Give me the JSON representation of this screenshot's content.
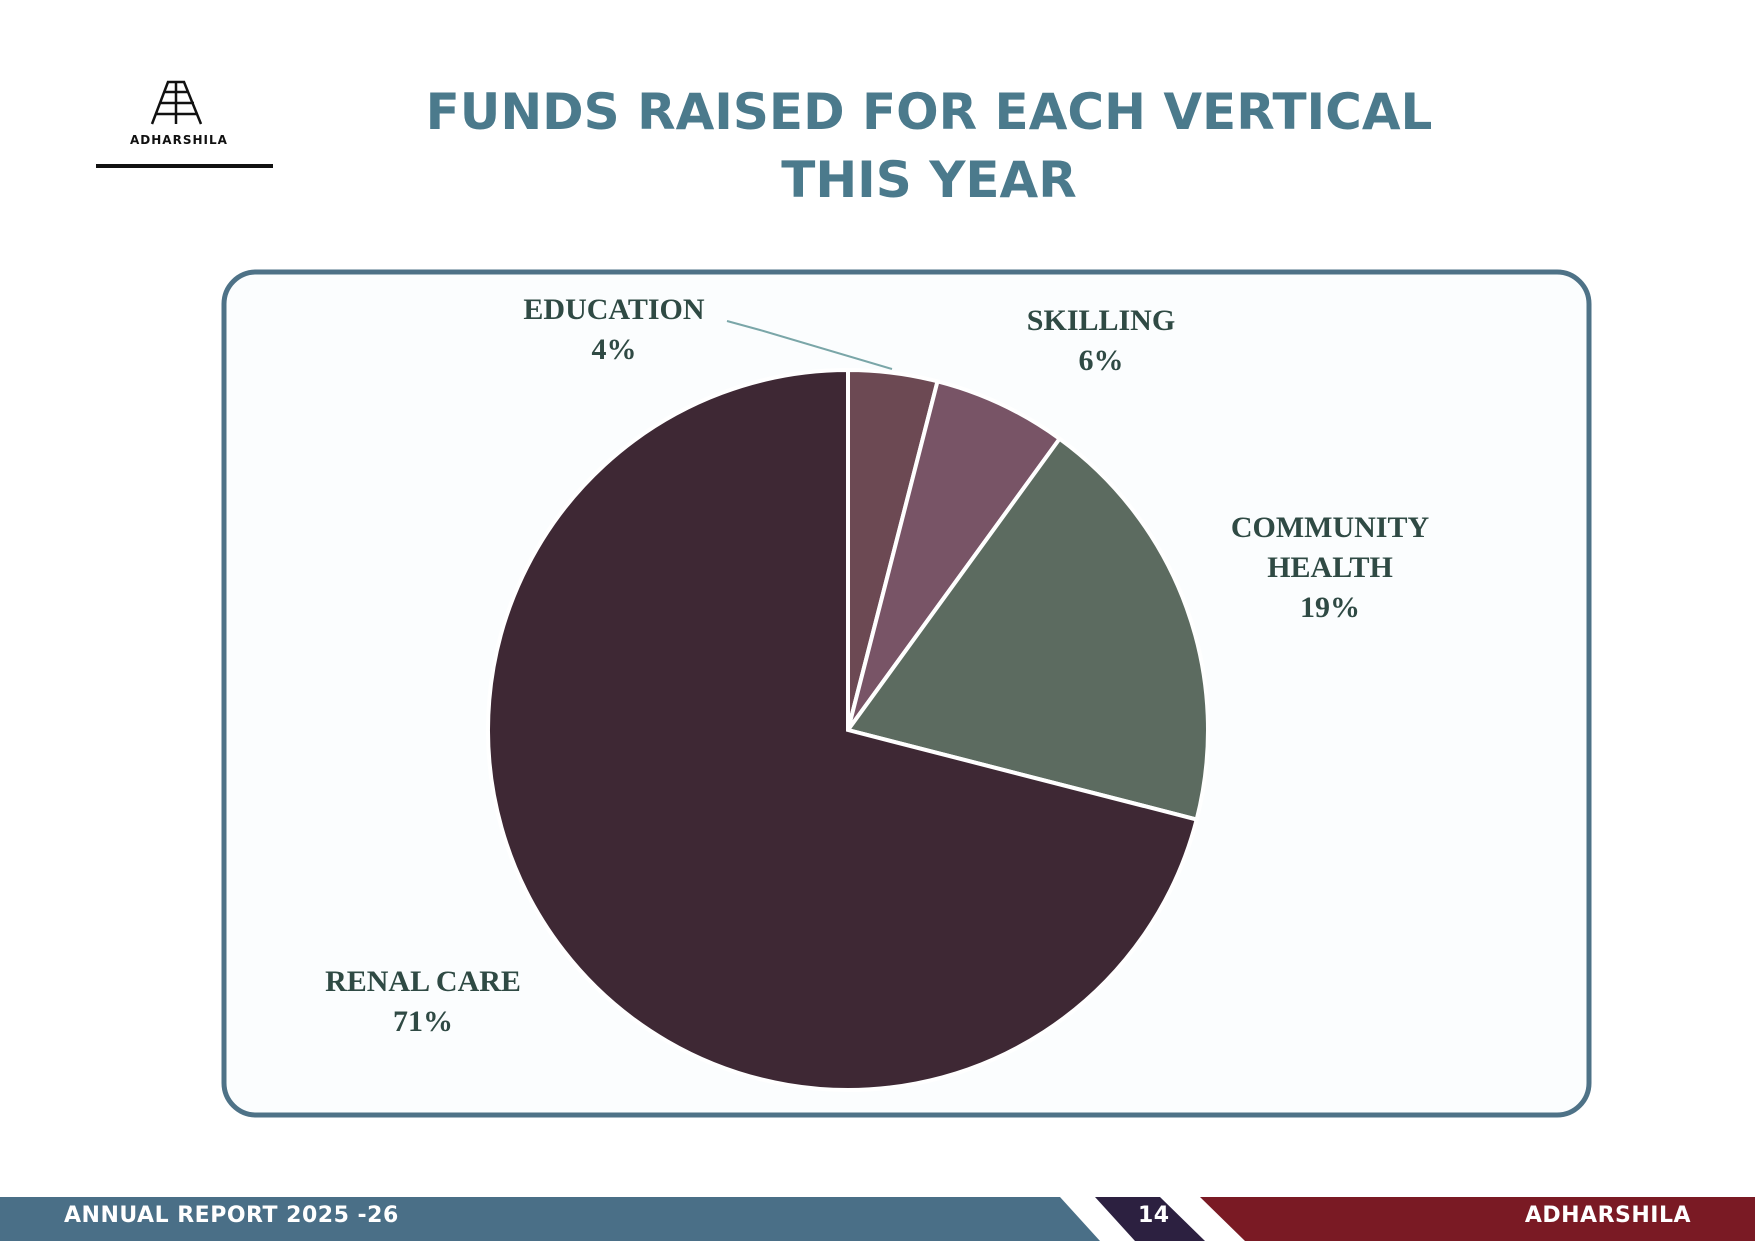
{
  "header": {
    "logo_text": "ADHARSHILA"
  },
  "chart_data": {
    "type": "pie",
    "title": "FUNDS RAISED FOR EACH VERTICAL THIS YEAR",
    "categories": [
      "EDUCATION",
      "SKILLING",
      "COMMUNITY HEALTH",
      "RENAL CARE"
    ],
    "values": [
      4,
      6,
      19,
      71
    ],
    "value_labels": [
      "4%",
      "6%",
      "19%",
      "71%"
    ],
    "colors": [
      "#6c4953",
      "#785466",
      "#5c6b60",
      "#3e2834"
    ]
  },
  "footer": {
    "left": "ANNUAL REPORT 2025 -26",
    "page": "14",
    "right": "ADHARSHILA"
  }
}
